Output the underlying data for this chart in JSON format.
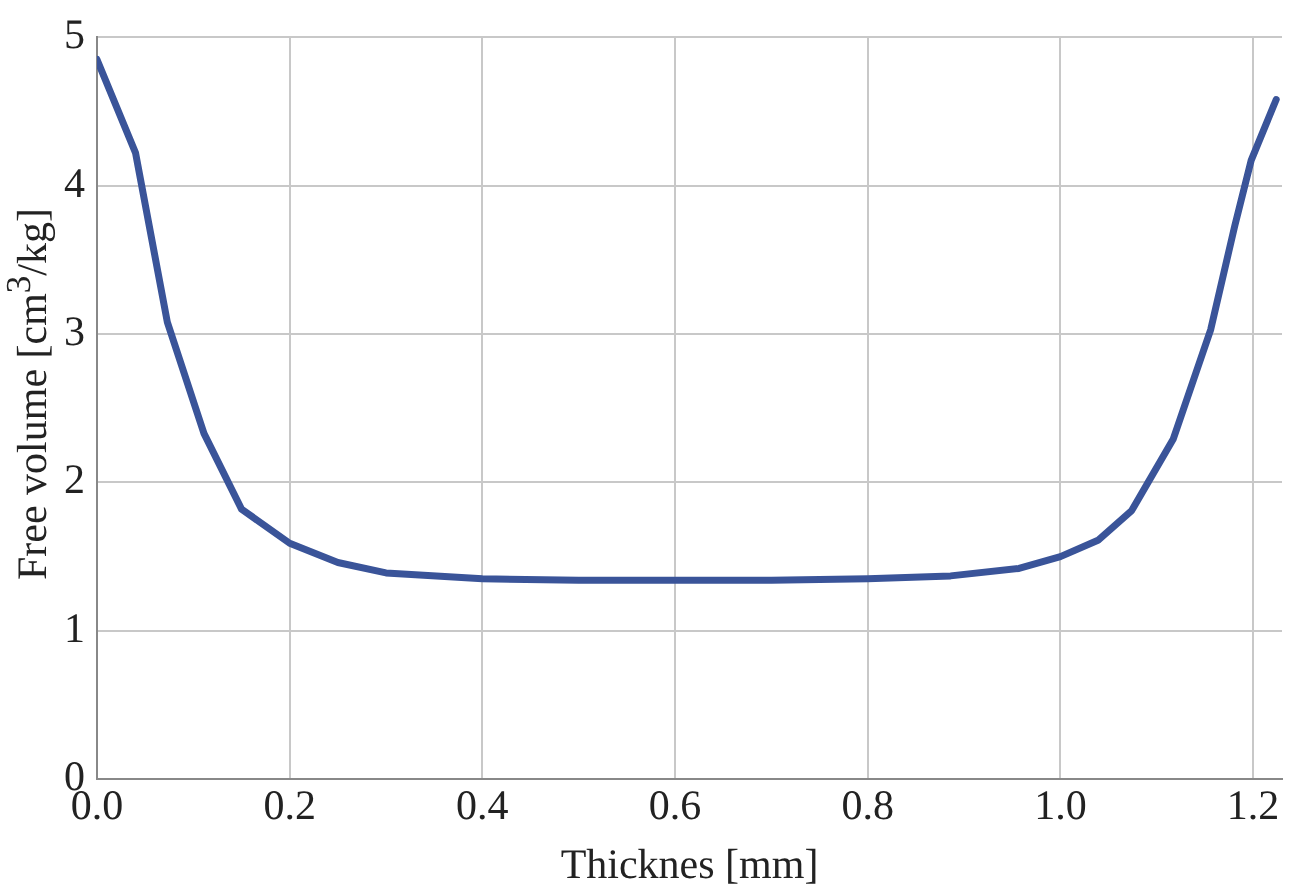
{
  "chart_data": {
    "type": "line",
    "xlabel": "Thicknes [mm]",
    "ylabel": "Free volume [cm$^{3}$/kg]",
    "x": [
      0,
      0.04,
      0.073,
      0.111,
      0.15,
      0.2,
      0.25,
      0.3,
      0.4,
      0.5,
      0.6,
      0.7,
      0.8,
      0.886,
      0.957,
      1.0,
      1.039,
      1.074,
      1.117,
      1.156,
      1.181,
      1.198,
      1.224
    ],
    "series": [
      {
        "color": "#3a5499",
        "values": [
          4.85,
          4.22,
          3.08,
          2.33,
          1.82,
          1.59,
          1.46,
          1.39,
          1.35,
          1.34,
          1.34,
          1.34,
          1.35,
          1.37,
          1.42,
          1.5,
          1.61,
          1.81,
          2.29,
          3.03,
          3.73,
          4.17,
          4.58
        ]
      }
    ],
    "xlim": [
      0,
      1.23
    ],
    "ylim": [
      0,
      5
    ],
    "xticks": [
      {
        "value": 0,
        "label": "0.0"
      },
      {
        "value": 0.2,
        "label": "0.2"
      },
      {
        "value": 0.4,
        "label": "0.4"
      },
      {
        "value": 0.6,
        "label": "0.6"
      },
      {
        "value": 0.8,
        "label": "0.8"
      },
      {
        "value": 1,
        "label": "1.0"
      },
      {
        "value": 1.2,
        "label": "1.2"
      }
    ],
    "yticks": [
      0,
      1,
      2,
      3,
      4,
      5
    ],
    "grid": true,
    "marker": "none",
    "line_style": "solid"
  }
}
